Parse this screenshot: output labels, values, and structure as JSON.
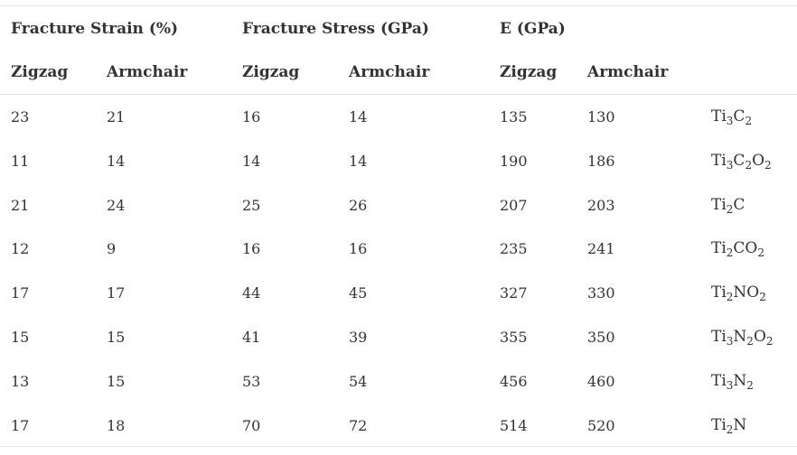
{
  "header": {
    "group1": "Fracture Strain (%)",
    "group2": "Fracture Stress (GPa)",
    "group3": "E (GPa)",
    "sub": [
      "Zigzag",
      "Armchair",
      "Zigzag",
      "Armchair",
      "Zigzag",
      "Armchair"
    ]
  },
  "rows": [
    {
      "values": [
        "23",
        "21",
        "16",
        "14",
        "135",
        "130"
      ],
      "material": [
        [
          "Ti",
          false
        ],
        [
          "3",
          true
        ],
        [
          "C",
          false
        ],
        [
          "2",
          true
        ]
      ]
    },
    {
      "values": [
        "11",
        "14",
        "14",
        "14",
        "190",
        "186"
      ],
      "material": [
        [
          "Ti",
          false
        ],
        [
          "3",
          true
        ],
        [
          "C",
          false
        ],
        [
          "2",
          true
        ],
        [
          "O",
          false
        ],
        [
          "2",
          true
        ]
      ]
    },
    {
      "values": [
        "21",
        "24",
        "25",
        "26",
        "207",
        "203"
      ],
      "material": [
        [
          "Ti",
          false
        ],
        [
          "2",
          true
        ],
        [
          "C",
          false
        ]
      ]
    },
    {
      "values": [
        "12",
        "9",
        "16",
        "16",
        "235",
        "241"
      ],
      "material": [
        [
          "Ti",
          false
        ],
        [
          "2",
          true
        ],
        [
          "CO",
          false
        ],
        [
          "2",
          true
        ]
      ]
    },
    {
      "values": [
        "17",
        "17",
        "44",
        "45",
        "327",
        "330"
      ],
      "material": [
        [
          "Ti",
          false
        ],
        [
          "2",
          true
        ],
        [
          "NO",
          false
        ],
        [
          "2",
          true
        ]
      ]
    },
    {
      "values": [
        "15",
        "15",
        "41",
        "39",
        "355",
        "350"
      ],
      "material": [
        [
          "Ti",
          false
        ],
        [
          "3",
          true
        ],
        [
          "N",
          false
        ],
        [
          "2",
          true
        ],
        [
          "O",
          false
        ],
        [
          "2",
          true
        ]
      ]
    },
    {
      "values": [
        "13",
        "15",
        "53",
        "54",
        "456",
        "460"
      ],
      "material": [
        [
          "Ti",
          false
        ],
        [
          "3",
          true
        ],
        [
          "N",
          false
        ],
        [
          "2",
          true
        ]
      ]
    },
    {
      "values": [
        "17",
        "18",
        "70",
        "72",
        "514",
        "520"
      ],
      "material": [
        [
          "Ti",
          false
        ],
        [
          "2",
          true
        ],
        [
          "N",
          false
        ]
      ]
    }
  ]
}
